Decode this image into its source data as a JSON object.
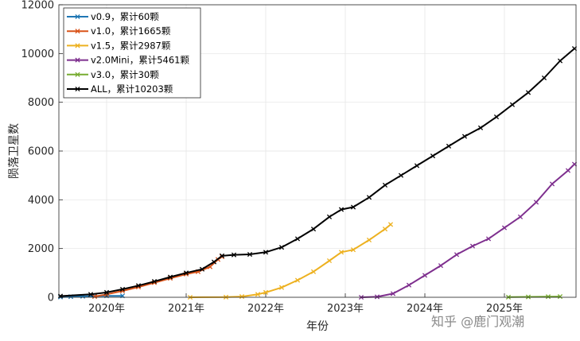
{
  "chart_data": {
    "type": "line",
    "xlabel": "年份",
    "ylabel": "陨落卫星数",
    "ylim": [
      0,
      12000
    ],
    "yticks": [
      0,
      2000,
      4000,
      6000,
      8000,
      10000,
      12000
    ],
    "xlim": [
      2019.4,
      2025.9
    ],
    "xticks": [
      2020,
      2021,
      2022,
      2023,
      2024,
      2025
    ],
    "xticklabels": [
      "2020年",
      "2021年",
      "2022年",
      "2023年",
      "2024年",
      "2025年"
    ],
    "grid": true,
    "legend_position": "top-left",
    "series": [
      {
        "name": "v0.9，累计60颗",
        "color": "#1f77b4",
        "marker": "x",
        "points": [
          [
            2019.42,
            10
          ],
          [
            2019.55,
            25
          ],
          [
            2019.7,
            40
          ],
          [
            2019.85,
            50
          ],
          [
            2020.0,
            58
          ],
          [
            2020.2,
            60
          ]
        ]
      },
      {
        "name": "v1.0，累计1665颗",
        "color": "#d95319",
        "marker": "x",
        "points": [
          [
            2019.85,
            30
          ],
          [
            2020.0,
            120
          ],
          [
            2020.2,
            260
          ],
          [
            2020.4,
            420
          ],
          [
            2020.6,
            600
          ],
          [
            2020.8,
            780
          ],
          [
            2021.0,
            950
          ],
          [
            2021.15,
            1050
          ],
          [
            2021.3,
            1250
          ],
          [
            2021.4,
            1550
          ],
          [
            2021.45,
            1665
          ]
        ]
      },
      {
        "name": "v1.5，累计2987颗",
        "color": "#edb120",
        "marker": "x",
        "points": [
          [
            2021.05,
            0
          ],
          [
            2021.5,
            5
          ],
          [
            2021.7,
            30
          ],
          [
            2021.9,
            120
          ],
          [
            2022.0,
            200
          ],
          [
            2022.2,
            400
          ],
          [
            2022.4,
            700
          ],
          [
            2022.6,
            1050
          ],
          [
            2022.8,
            1500
          ],
          [
            2022.95,
            1850
          ],
          [
            2023.1,
            1950
          ],
          [
            2023.3,
            2350
          ],
          [
            2023.5,
            2800
          ],
          [
            2023.57,
            2987
          ]
        ]
      },
      {
        "name": "v2.0Mini，累计5461颗",
        "color": "#7e2f8e",
        "marker": "x",
        "points": [
          [
            2023.2,
            0
          ],
          [
            2023.4,
            20
          ],
          [
            2023.6,
            150
          ],
          [
            2023.8,
            500
          ],
          [
            2024.0,
            900
          ],
          [
            2024.2,
            1300
          ],
          [
            2024.4,
            1750
          ],
          [
            2024.6,
            2100
          ],
          [
            2024.8,
            2400
          ],
          [
            2025.0,
            2850
          ],
          [
            2025.2,
            3300
          ],
          [
            2025.4,
            3900
          ],
          [
            2025.6,
            4650
          ],
          [
            2025.8,
            5200
          ],
          [
            2025.88,
            5461
          ]
        ]
      },
      {
        "name": "v3.0，累计30颗",
        "color": "#77ac30",
        "marker": "x",
        "points": [
          [
            2025.05,
            5
          ],
          [
            2025.3,
            15
          ],
          [
            2025.55,
            25
          ],
          [
            2025.7,
            30
          ]
        ]
      },
      {
        "name": "ALL，累计10203颗",
        "color": "#000000",
        "marker": "x",
        "points": [
          [
            2019.42,
            50
          ],
          [
            2019.8,
            120
          ],
          [
            2020.0,
            200
          ],
          [
            2020.2,
            330
          ],
          [
            2020.4,
            480
          ],
          [
            2020.6,
            650
          ],
          [
            2020.8,
            830
          ],
          [
            2021.0,
            1000
          ],
          [
            2021.2,
            1150
          ],
          [
            2021.35,
            1450
          ],
          [
            2021.45,
            1700
          ],
          [
            2021.6,
            1740
          ],
          [
            2021.8,
            1760
          ],
          [
            2022.0,
            1850
          ],
          [
            2022.2,
            2050
          ],
          [
            2022.4,
            2400
          ],
          [
            2022.6,
            2800
          ],
          [
            2022.8,
            3300
          ],
          [
            2022.95,
            3600
          ],
          [
            2023.1,
            3700
          ],
          [
            2023.3,
            4100
          ],
          [
            2023.5,
            4600
          ],
          [
            2023.7,
            5000
          ],
          [
            2023.9,
            5400
          ],
          [
            2024.1,
            5800
          ],
          [
            2024.3,
            6200
          ],
          [
            2024.5,
            6600
          ],
          [
            2024.7,
            6950
          ],
          [
            2024.9,
            7400
          ],
          [
            2025.1,
            7900
          ],
          [
            2025.3,
            8400
          ],
          [
            2025.5,
            9000
          ],
          [
            2025.7,
            9700
          ],
          [
            2025.88,
            10203
          ]
        ]
      }
    ]
  },
  "watermark": "知乎 @鹿门观潮"
}
